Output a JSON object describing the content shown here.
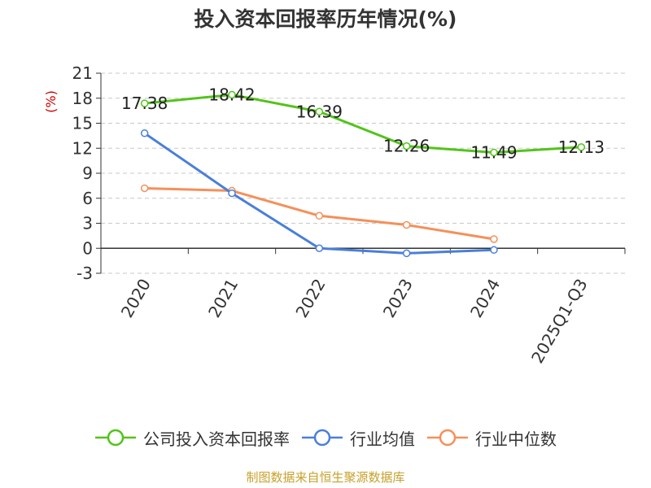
{
  "title": "投入资本回报率历年情况(%)",
  "source": "制图数据来自恒生聚源数据库",
  "chart_data": {
    "type": "line",
    "title": "投入资本回报率历年情况(%)",
    "ylabel": "(%)",
    "xlabel": "",
    "categories": [
      "2020",
      "2021",
      "2022",
      "2023",
      "2024",
      "2025Q1-Q3"
    ],
    "yticks": [
      "21",
      "18",
      "15",
      "12",
      "9",
      "6",
      "3",
      "0",
      "-3"
    ],
    "ylim": [
      -3,
      21
    ],
    "grid": true,
    "legend_position": "bottom",
    "series": [
      {
        "name": "公司投入资本回报率",
        "color": "#52c41a",
        "values": [
          17.38,
          18.42,
          16.39,
          12.26,
          11.49,
          12.13
        ],
        "labels": [
          "17.38",
          "18.42",
          "16.39",
          "12.26",
          "11.49",
          "12.13"
        ]
      },
      {
        "name": "行业均值",
        "color": "#4a7fd9",
        "values": [
          13.8,
          6.6,
          0.0,
          -0.6,
          -0.2,
          null
        ]
      },
      {
        "name": "行业中位数",
        "color": "#f5905a",
        "values": [
          7.2,
          6.9,
          3.9,
          2.8,
          1.1,
          null
        ]
      }
    ]
  }
}
